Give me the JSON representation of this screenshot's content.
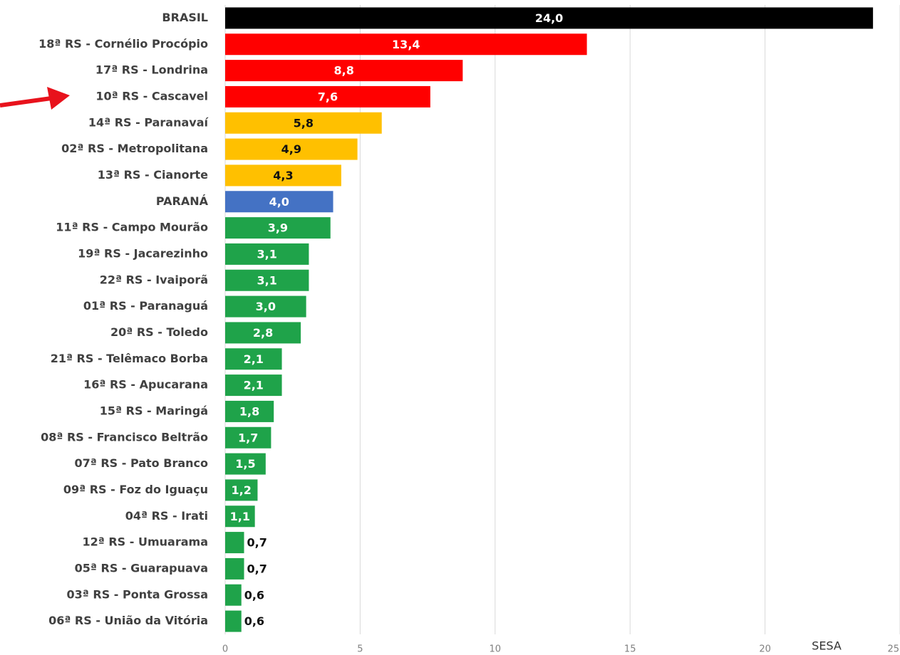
{
  "chart_data": {
    "type": "hbar",
    "categories": [
      "BRASIL",
      "18ª RS - Cornélio Procópio",
      "17ª RS - Londrina",
      "10ª RS - Cascavel",
      "14ª RS - Paranavaí",
      "02ª RS - Metropolitana",
      "13ª RS - Cianorte",
      "PARANÁ",
      "11ª RS - Campo Mourão",
      "19ª RS - Jacarezinho",
      "22ª RS - Ivaiporã",
      "01ª RS - Paranaguá",
      "20ª RS - Toledo",
      "21ª RS - Telêmaco Borba",
      "16ª RS - Apucarana",
      "15ª RS - Maringá",
      "08ª RS - Francisco Beltrão",
      "07ª RS - Pato Branco",
      "09ª RS - Foz do Iguaçu",
      "04ª RS - Irati",
      "12ª RS - Umuarama",
      "05ª RS - Guarapuava",
      "03ª RS - Ponta Grossa",
      "06ª RS - União da Vitória"
    ],
    "values": [
      24.0,
      13.4,
      8.8,
      7.6,
      5.8,
      4.9,
      4.3,
      4.0,
      3.9,
      3.1,
      3.1,
      3.0,
      2.8,
      2.1,
      2.1,
      1.8,
      1.7,
      1.5,
      1.2,
      1.1,
      0.7,
      0.7,
      0.6,
      0.6
    ],
    "value_labels": [
      "24,0",
      "13,4",
      "8,8",
      "7,6",
      "5,8",
      "4,9",
      "4,3",
      "4,0",
      "3,9",
      "3,1",
      "3,1",
      "3,0",
      "2,8",
      "2,1",
      "2,1",
      "1,8",
      "1,7",
      "1,5",
      "1,2",
      "1,1",
      "0,7",
      "0,7",
      "0,6",
      "0,6"
    ],
    "colors": [
      "#000000",
      "#ff0000",
      "#ff0000",
      "#ff0000",
      "#ffc000",
      "#ffc000",
      "#ffc000",
      "#4472c4",
      "#1fa34a",
      "#1fa34a",
      "#1fa34a",
      "#1fa34a",
      "#1fa34a",
      "#1fa34a",
      "#1fa34a",
      "#1fa34a",
      "#1fa34a",
      "#1fa34a",
      "#1fa34a",
      "#1fa34a",
      "#1fa34a",
      "#1fa34a",
      "#1fa34a",
      "#1fa34a"
    ],
    "xlim": [
      0,
      25
    ],
    "xticks": [
      0,
      5,
      10,
      15,
      20,
      25
    ],
    "grid": true,
    "annotation": "SESA"
  }
}
